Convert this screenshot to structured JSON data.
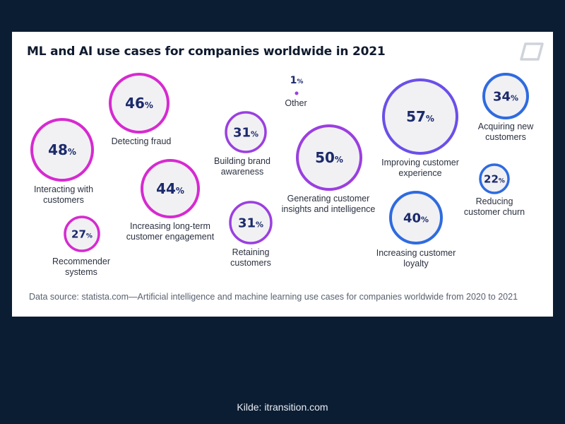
{
  "chart_data": {
    "type": "bubble",
    "title": "ML and AI use cases for companies worldwide in 2021",
    "unit": "%",
    "items": [
      {
        "label": "Detecting fraud",
        "value": 46,
        "group": "magenta"
      },
      {
        "label": "Interacting with customers",
        "value": 48,
        "group": "magenta"
      },
      {
        "label": "Increasing long-term customer engagement",
        "value": 44,
        "group": "magenta"
      },
      {
        "label": "Recommender systems",
        "value": 27,
        "group": "magenta"
      },
      {
        "label": "Building brand awareness",
        "value": 31,
        "group": "purple"
      },
      {
        "label": "Retaining customers",
        "value": 31,
        "group": "purple"
      },
      {
        "label": "Other",
        "value": 1,
        "group": "purple"
      },
      {
        "label": "Generating customer insights and intelligence",
        "value": 50,
        "group": "purple"
      },
      {
        "label": "Improving customer experience",
        "value": 57,
        "group": "violet"
      },
      {
        "label": "Increasing customer loyalty",
        "value": 40,
        "group": "blue"
      },
      {
        "label": "Acquiring new customers",
        "value": 34,
        "group": "blue"
      },
      {
        "label": "Reducing customer churn",
        "value": 22,
        "group": "blue"
      }
    ],
    "source": "Data source: statista.com—Artificial intelligence and machine learning use cases for companies worldwide from 2020 to 2021"
  },
  "colors": {
    "magenta": "#d62ad0",
    "purple": "#9b3fe0",
    "violet": "#6b4fe8",
    "blue": "#2f6bdf",
    "fill": "#f1f1f4",
    "background": "#0b1d33"
  },
  "logo_icon": "leaf-logo-icon",
  "credit": "Kilde: itransition.com"
}
